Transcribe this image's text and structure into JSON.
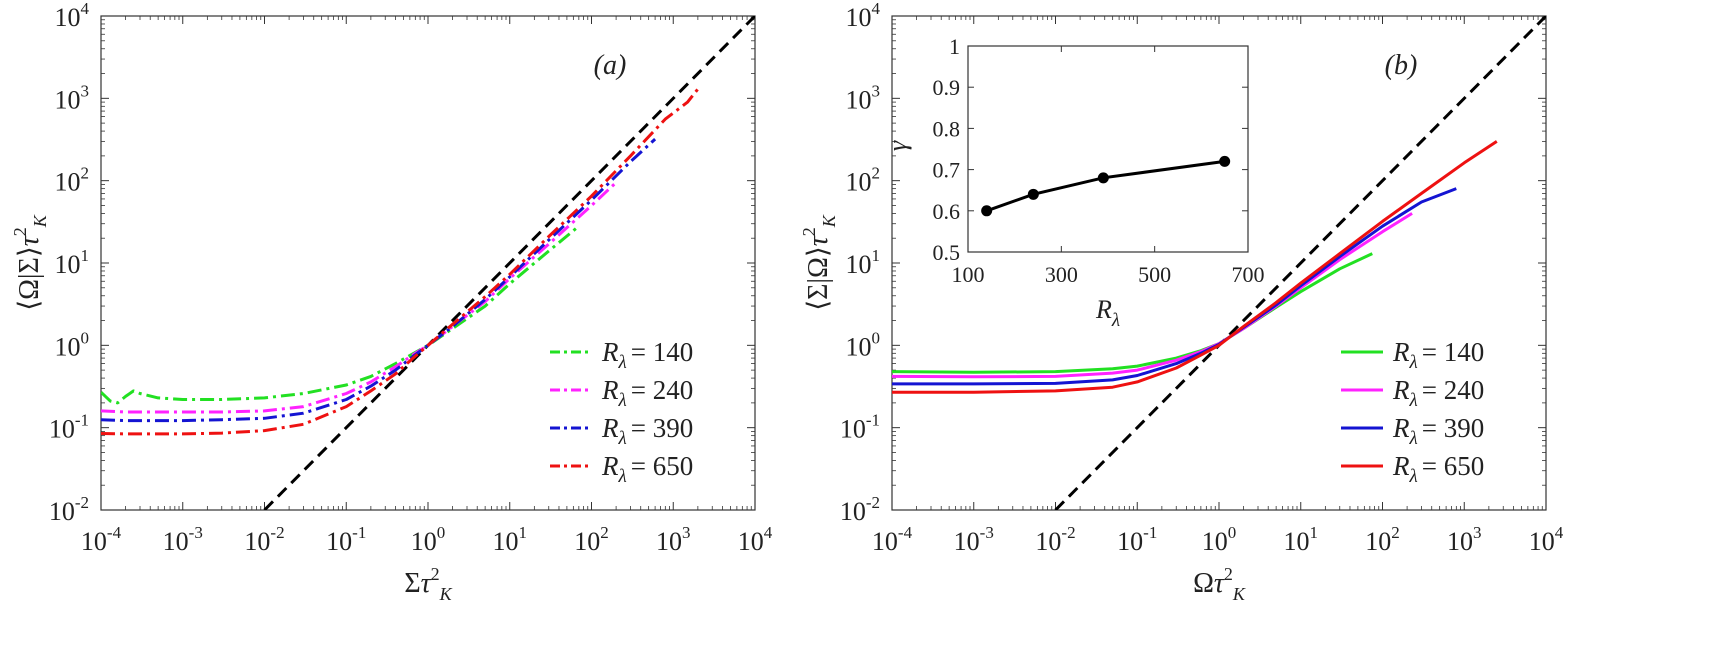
{
  "chart_data": [
    {
      "type": "line",
      "panel": "(a)",
      "xlabel": "Στ_K^2",
      "ylabel": "⟨Ω|Σ⟩τ_K^2",
      "xscale": "log",
      "yscale": "log",
      "xlim": [
        0.0001,
        10000
      ],
      "ylim": [
        0.01,
        10000
      ],
      "xtick_exponents": [
        "-4",
        "-3",
        "-2",
        "-1",
        "0",
        "1",
        "2",
        "3",
        "4"
      ],
      "ytick_exponents": [
        "-2",
        "-1",
        "0",
        "1",
        "2",
        "3",
        "4"
      ],
      "tick_base": "10",
      "legend_placement": "lower-right",
      "reference": {
        "style": "dashed",
        "color": "#000000",
        "x": [
          0.01,
          10000
        ],
        "y": [
          0.01,
          10000
        ]
      },
      "series": [
        {
          "name": "R_λ = 140",
          "legend_rhs": "= 140",
          "color": "#22e022",
          "style": "dashdot",
          "x": [
            0.0001,
            0.00013,
            0.00016,
            0.0002,
            0.00025,
            0.0003,
            0.0005,
            0.001,
            0.003,
            0.01,
            0.03,
            0.1,
            0.2,
            0.4,
            0.7,
            1,
            2,
            5,
            10,
            30,
            70
          ],
          "y": [
            0.27,
            0.21,
            0.2,
            0.24,
            0.28,
            0.26,
            0.23,
            0.22,
            0.22,
            0.23,
            0.26,
            0.33,
            0.42,
            0.6,
            0.82,
            1.0,
            1.6,
            3.0,
            5.6,
            14,
            28
          ]
        },
        {
          "name": "R_λ = 240",
          "legend_rhs": "= 240",
          "color": "#ff22ff",
          "style": "dashdot",
          "x": [
            0.0001,
            0.0002,
            0.001,
            0.003,
            0.01,
            0.03,
            0.1,
            0.2,
            0.4,
            0.7,
            1,
            2,
            5,
            10,
            30,
            100,
            200
          ],
          "y": [
            0.16,
            0.155,
            0.155,
            0.155,
            0.16,
            0.18,
            0.26,
            0.36,
            0.55,
            0.8,
            1.0,
            1.7,
            3.4,
            6.5,
            17,
            50,
            95
          ]
        },
        {
          "name": "R_λ = 390",
          "legend_rhs": "= 390",
          "color": "#1414d2",
          "style": "dashdot",
          "x": [
            0.0001,
            0.0002,
            0.001,
            0.003,
            0.01,
            0.03,
            0.1,
            0.2,
            0.4,
            0.7,
            1,
            2,
            5,
            10,
            30,
            100,
            300,
            600
          ],
          "y": [
            0.125,
            0.122,
            0.122,
            0.125,
            0.13,
            0.15,
            0.22,
            0.32,
            0.5,
            0.77,
            1.0,
            1.7,
            3.6,
            6.8,
            19,
            58,
            170,
            320
          ]
        },
        {
          "name": "R_λ = 650",
          "legend_rhs": "= 650",
          "color": "#ee1111",
          "style": "dashdot",
          "x": [
            0.0001,
            0.0002,
            0.001,
            0.003,
            0.01,
            0.03,
            0.1,
            0.2,
            0.4,
            0.7,
            1,
            2,
            5,
            10,
            30,
            100,
            300,
            800,
            1500,
            2000
          ],
          "y": [
            0.085,
            0.084,
            0.084,
            0.086,
            0.092,
            0.11,
            0.18,
            0.28,
            0.45,
            0.74,
            1.0,
            1.8,
            3.9,
            7.3,
            21,
            65,
            200,
            560,
            900,
            1300
          ]
        }
      ]
    },
    {
      "type": "line",
      "panel": "(b)",
      "xlabel": "Ωτ_K^2",
      "ylabel": "⟨Σ|Ω⟩τ_K^2",
      "xscale": "log",
      "yscale": "log",
      "xlim": [
        0.0001,
        10000
      ],
      "ylim": [
        0.01,
        10000
      ],
      "xtick_exponents": [
        "-4",
        "-3",
        "-2",
        "-1",
        "0",
        "1",
        "2",
        "3",
        "4"
      ],
      "ytick_exponents": [
        "-2",
        "-1",
        "0",
        "1",
        "2",
        "3",
        "4"
      ],
      "tick_base": "10",
      "legend_placement": "lower-right",
      "reference": {
        "style": "dashed",
        "color": "#000000",
        "x": [
          0.01,
          10000
        ],
        "y": [
          0.01,
          10000
        ]
      },
      "series": [
        {
          "name": "R_λ = 140",
          "legend_rhs": "= 140",
          "color": "#22e022",
          "style": "solid",
          "x": [
            0.0001,
            0.001,
            0.01,
            0.05,
            0.1,
            0.3,
            0.6,
            1,
            2,
            5,
            10,
            30,
            75
          ],
          "y": [
            0.48,
            0.47,
            0.48,
            0.52,
            0.56,
            0.7,
            0.86,
            1.05,
            1.6,
            2.9,
            4.5,
            8.5,
            13
          ]
        },
        {
          "name": "R_λ = 240",
          "legend_rhs": "= 240",
          "color": "#ff22ff",
          "style": "solid",
          "x": [
            0.0001,
            0.001,
            0.01,
            0.05,
            0.1,
            0.3,
            0.6,
            1,
            2,
            5,
            10,
            30,
            100,
            230
          ],
          "y": [
            0.42,
            0.415,
            0.42,
            0.46,
            0.5,
            0.66,
            0.84,
            1.05,
            1.6,
            3.0,
            5.0,
            11,
            24,
            40
          ]
        },
        {
          "name": "R_λ = 390",
          "legend_rhs": "= 390",
          "color": "#1414d2",
          "style": "solid",
          "x": [
            0.0001,
            0.001,
            0.01,
            0.05,
            0.1,
            0.3,
            0.6,
            1,
            2,
            5,
            10,
            30,
            100,
            300,
            800
          ],
          "y": [
            0.34,
            0.34,
            0.345,
            0.38,
            0.43,
            0.6,
            0.8,
            1.03,
            1.65,
            3.1,
            5.3,
            12,
            28,
            55,
            80
          ]
        },
        {
          "name": "R_λ = 650",
          "legend_rhs": "= 650",
          "color": "#ee1111",
          "style": "solid",
          "x": [
            0.0001,
            0.001,
            0.01,
            0.05,
            0.1,
            0.3,
            0.6,
            1,
            2,
            5,
            10,
            30,
            100,
            300,
            1000,
            2500
          ],
          "y": [
            0.27,
            0.27,
            0.28,
            0.31,
            0.36,
            0.53,
            0.76,
            1.0,
            1.7,
            3.3,
            5.7,
            13,
            32,
            70,
            165,
            300
          ]
        }
      ]
    },
    {
      "type": "line",
      "panel": "(b) inset",
      "xlabel": "R_λ",
      "ylabel": "γ",
      "xlim": [
        100,
        700
      ],
      "ylim": [
        0.5,
        1
      ],
      "xticks": [
        "100",
        "300",
        "500",
        "700"
      ],
      "yticks": [
        "0.5",
        "0.6",
        "0.7",
        "0.8",
        "0.9",
        "1"
      ],
      "series": [
        {
          "color": "#000000",
          "style": "solid-markers",
          "x": [
            140,
            240,
            390,
            650
          ],
          "y": [
            0.6,
            0.64,
            0.68,
            0.72
          ]
        }
      ]
    }
  ]
}
